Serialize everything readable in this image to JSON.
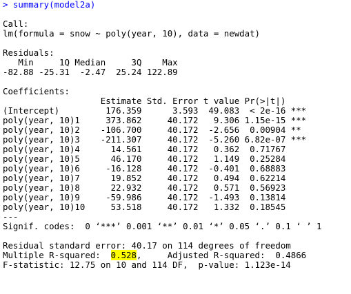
{
  "console": {
    "command": "> summary(model2a)",
    "call_header": "Call:",
    "call_formula": "lm(formula = snow ~ poly(year, 10), data = newdat)",
    "residuals_header": "Residuals:",
    "residuals_labels": "   Min     1Q Median     3Q    Max ",
    "residuals_values": "-82.88 -25.31  -2.47  25.24 122.89 ",
    "coefficients_header": "Coefficients:",
    "coef_columns": "                   Estimate Std. Error t value Pr(>|t|)    ",
    "coef_rows": [
      "(Intercept)         176.359      3.593  49.083  < 2e-16 ***",
      "poly(year, 10)1     373.862     40.172   9.306 1.15e-15 ***",
      "poly(year, 10)2    -106.700     40.172  -2.656  0.00904 ** ",
      "poly(year, 10)3    -211.307     40.172  -5.260 6.82e-07 ***",
      "poly(year, 10)4      14.561     40.172   0.362  0.71767    ",
      "poly(year, 10)5      46.170     40.172   1.149  0.25284    ",
      "poly(year, 10)6     -16.128     40.172  -0.401  0.68883    ",
      "poly(year, 10)7      19.852     40.172   0.494  0.62214    ",
      "poly(year, 10)8      22.932     40.172   0.571  0.56923    ",
      "poly(year, 10)9     -59.986     40.172  -1.493  0.13814    ",
      "poly(year, 10)10     53.518     40.172   1.332  0.18545    "
    ],
    "separator": "---",
    "signif_codes": "Signif. codes:  0 ‘***’ 0.001 ‘**’ 0.01 ‘*’ 0.05 ‘.’ 0.1 ‘ ’ 1",
    "residual_se": "Residual standard error: 40.17 on 114 degrees of freedom",
    "multiple_r2_label": "Multiple R-squared:  ",
    "multiple_r2_value": "0.528",
    "adjusted_r2": ",\tAdjusted R-squared:  0.4866 ",
    "f_statistic": "F-statistic: 12.75 on 10 and 114 DF,  p-value: 1.123e-14",
    "highlight_color": "#ffff00",
    "command_color": "#0000ff"
  }
}
